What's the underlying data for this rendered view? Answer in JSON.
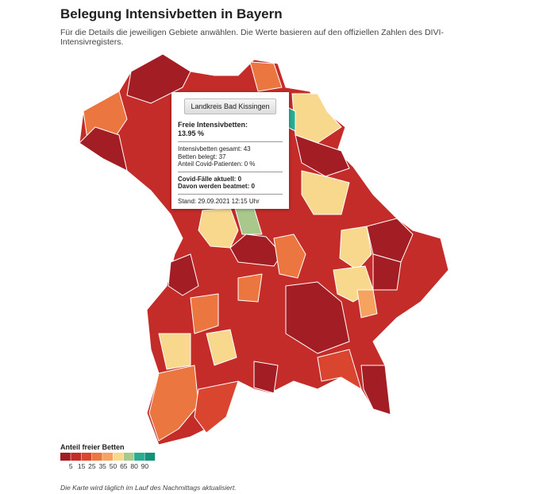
{
  "header": {
    "title": "Belegung Intensivbetten in Bayern",
    "subtitle": "Für die Details die jeweiligen Gebiete anwählen. Die Werte basieren auf den offiziellen Zahlen des DIVI-Intensivregisters."
  },
  "tooltip": {
    "button": "Landkreis Bad Kissingen",
    "heading": "Freie Intensivbetten:",
    "value": "13.95 %",
    "lines": [
      "Intensivbetten gesamt: 43",
      "Betten belegt: 37",
      "Anteil Covid-Patienten: 0 %"
    ],
    "covid": [
      "Covid-Fälle aktuell: 0",
      "Davon werden beatmet: 0"
    ],
    "stand": "Stand: 29.09.2021 12:15 Uhr"
  },
  "legend": {
    "title": "Anteil freier Betten",
    "colors": [
      "#a31d24",
      "#c42c2a",
      "#d9452e",
      "#ec7640",
      "#f5a35f",
      "#f8d88c",
      "#a9c98c",
      "#27ad91",
      "#15907a"
    ],
    "labels": [
      5,
      15,
      25,
      35,
      50,
      65,
      80,
      90
    ]
  },
  "footnote": "Die Karte wird täglich im Lauf des Nachmittags aktualisiert."
}
